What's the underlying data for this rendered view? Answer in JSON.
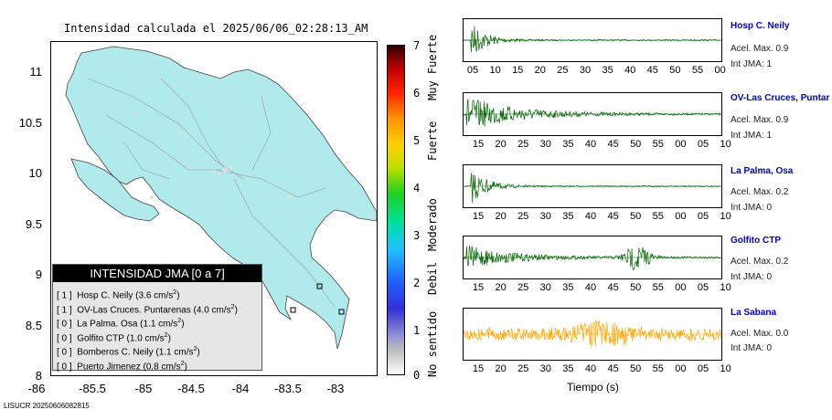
{
  "map": {
    "title": "Intensidad calculada el 2025/06/06_02:28:13_AM",
    "yticks": [
      "11",
      "10.5",
      "10",
      "9.5",
      "9",
      "8.5",
      "8"
    ],
    "xticks": [
      "-85.5",
      "-85",
      "-84.5",
      "-84",
      "-83.5",
      "-83"
    ],
    "source_id": "LISUCR 20250606082815"
  },
  "colorbar": {
    "ticks": [
      "7",
      "6",
      "5",
      "4",
      "3",
      "2",
      "1",
      "0"
    ],
    "categories": [
      "Muy Fuerte",
      "Fuerte",
      "Moderado",
      "Debil",
      "No sentido"
    ]
  },
  "legend": {
    "title": "INTENSIDAD JMA [0 a 7]",
    "rows": [
      {
        "jma": "[ 1 ]",
        "text": "Hosp C. Neily (3.6 cm/s",
        "unit_exp": "2",
        "close": ")"
      },
      {
        "jma": "[ 1 ]",
        "text": "OV-Las Cruces. Puntarenas (4.0 cm/s",
        "unit_exp": "2",
        "close": ")"
      },
      {
        "jma": "[ 0 ]",
        "text": "La Palma. Osa (1.1 cm/s",
        "unit_exp": "2",
        "close": ")"
      },
      {
        "jma": "[ 0 ]",
        "text": "Golfito CTP (1.0 cm/s",
        "unit_exp": "2",
        "close": ")"
      },
      {
        "jma": "[ 0 ]",
        "text": "Bomberos C. Neily (1.1 cm/s",
        "unit_exp": "2",
        "close": ")"
      },
      {
        "jma": "[ 0 ]",
        "text": "Puerto Jimenez (0.8 cm/s",
        "unit_exp": "2",
        "close": ")"
      }
    ]
  },
  "stations": [
    {
      "name": "Hosp C. Neily",
      "acel": "Acel. Max. 0.9",
      "jma": "Int JMA: 1",
      "color": "#006400",
      "ticks": [
        "05",
        "10",
        "15",
        "20",
        "25",
        "30",
        "35",
        "40",
        "45",
        "50",
        "55",
        "00"
      ]
    },
    {
      "name": "OV-Las Cruces, Puntar",
      "acel": "Acel. Max. 0.9",
      "jma": "Int JMA: 1",
      "color": "#006400",
      "ticks": [
        "15",
        "20",
        "25",
        "30",
        "35",
        "40",
        "45",
        "50",
        "55",
        "00",
        "05",
        "10"
      ]
    },
    {
      "name": "La Palma, Osa",
      "acel": "Acel. Max. 0.2",
      "jma": "Int JMA: 0",
      "color": "#006400",
      "ticks": [
        "15",
        "20",
        "25",
        "30",
        "35",
        "40",
        "45",
        "50",
        "55",
        "00",
        "05",
        "10"
      ]
    },
    {
      "name": "Golfito CTP",
      "acel": "Acel. Max. 0.2",
      "jma": "Int JMA: 0",
      "color": "#006400",
      "ticks": [
        "15",
        "20",
        "25",
        "30",
        "35",
        "40",
        "45",
        "50",
        "55",
        "00",
        "05",
        "10"
      ]
    },
    {
      "name": "La Sabana",
      "acel": "Acel. Max. 0.0",
      "jma": "Int JMA: 0",
      "color": "#ffa500",
      "ticks": [
        "15",
        "20",
        "25",
        "30",
        "35",
        "40",
        "45",
        "50",
        "55",
        "00",
        "05",
        "10"
      ]
    }
  ],
  "xlabel": "Tiempo (s)",
  "chart_data": [
    {
      "type": "map",
      "title": "Intensidad calculada el 2025/06/06_02:28:13_AM",
      "xlim": [
        -86,
        -82.7
      ],
      "ylim": [
        8,
        11.3
      ],
      "legend_placement": "bottom-left"
    },
    {
      "type": "line",
      "series": [
        {
          "name": "Hosp C. Neily",
          "shape": "impulsive"
        },
        {
          "name": "OV-Las Cruces, Puntar",
          "shape": "long-coda"
        },
        {
          "name": "La Palma, Osa",
          "shape": "impulsive"
        },
        {
          "name": "Golfito CTP",
          "shape": "two-bursts"
        },
        {
          "name": "La Sabana",
          "shape": "noise"
        }
      ]
    }
  ]
}
